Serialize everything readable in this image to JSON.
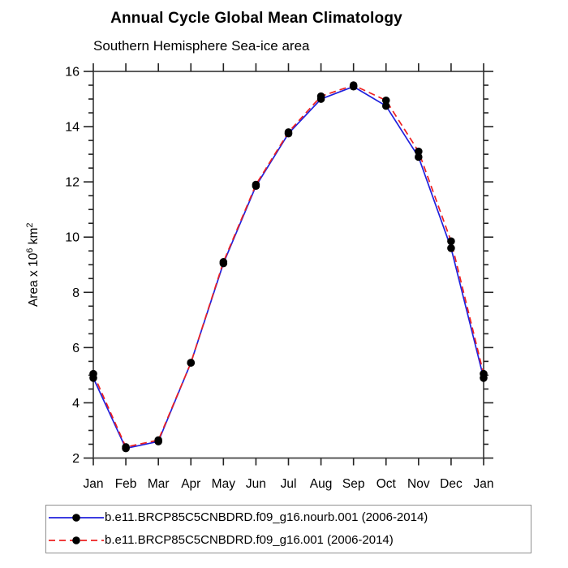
{
  "chart_data": {
    "type": "line",
    "title": "Annual Cycle Global Mean Climatology",
    "subtitle": "Southern Hemisphere Sea-ice area",
    "xlabel": "",
    "ylabel": "Area x 10^6 km^2",
    "ylim": [
      2,
      16
    ],
    "ytick_major": [
      2,
      4,
      6,
      8,
      10,
      12,
      14,
      16
    ],
    "ytick_minor_step": 0.5,
    "grid": false,
    "legend_position": "bottom",
    "frame_color": "#4a4a4a",
    "tick_color": "#222222",
    "marker_color": "#000000",
    "categories": [
      "Jan",
      "Feb",
      "Mar",
      "Apr",
      "May",
      "Jun",
      "Jul",
      "Aug",
      "Sep",
      "Oct",
      "Nov",
      "Dec",
      "Jan"
    ],
    "series": [
      {
        "name": "b.e11.BRCP85C5CNBDRD.f09_g16.nourb.001 (2006-2014)",
        "color": "#2020dd",
        "line_style": "solid",
        "marker": "filled-circle",
        "values": [
          4.9,
          2.35,
          2.6,
          5.45,
          9.05,
          11.85,
          13.75,
          15.0,
          15.45,
          14.75,
          12.9,
          9.6,
          4.9
        ]
      },
      {
        "name": "b.e11.BRCP85C5CNBDRD.f09_g16.001 (2006-2014)",
        "color": "#ee2020",
        "line_style": "dashed",
        "marker": "filled-circle",
        "values": [
          5.05,
          2.4,
          2.65,
          5.45,
          9.1,
          11.9,
          13.8,
          15.1,
          15.5,
          14.95,
          13.1,
          9.85,
          5.05
        ]
      }
    ]
  }
}
